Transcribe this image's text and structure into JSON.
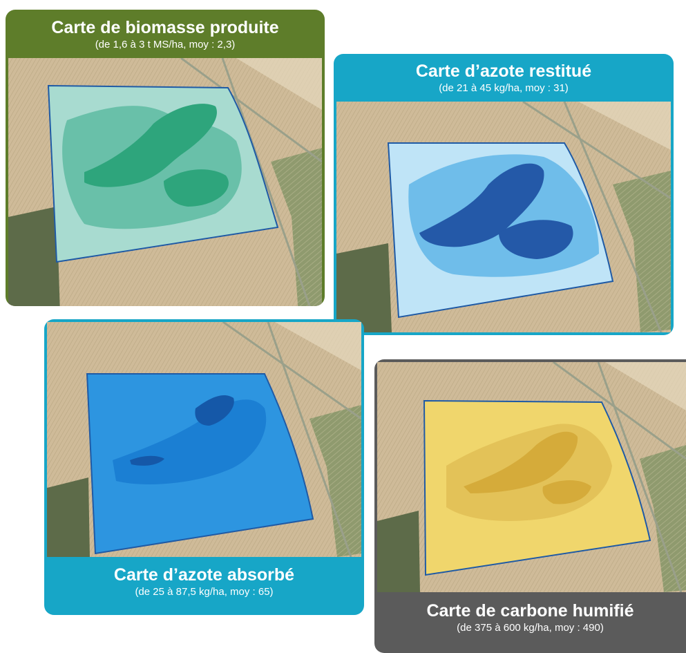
{
  "maps": [
    {
      "title": "Carte de biomasse produite",
      "subtitle": "(de 1,6 à 3 t MS/ha, moy : 2,3)",
      "header_color": "#5e7d2a",
      "overlay_colors": [
        "#a8dbd0",
        "#62bca4",
        "#2ea57c"
      ]
    },
    {
      "title": "Carte d’azote restitué",
      "subtitle": "(de 21 à 45 kg/ha, moy : 31)",
      "header_color": "#17a6c7",
      "overlay_colors": [
        "#bfe4f7",
        "#6fbdea",
        "#2459a8"
      ]
    },
    {
      "title": "Carte d’azote absorbé",
      "subtitle": "(de 25 à 87,5 kg/ha, moy : 65)",
      "header_color": "#17a6c7",
      "overlay_colors": [
        "#2d95e0",
        "#1b7fd3",
        "#1558a8"
      ]
    },
    {
      "title": "Carte de carbone humifié",
      "subtitle": "(de 375 à 600 kg/ha, moy : 490)",
      "header_color": "#5b5b5b",
      "overlay_colors": [
        "#f0d66c",
        "#e3c258",
        "#d5ab3a"
      ]
    }
  ]
}
